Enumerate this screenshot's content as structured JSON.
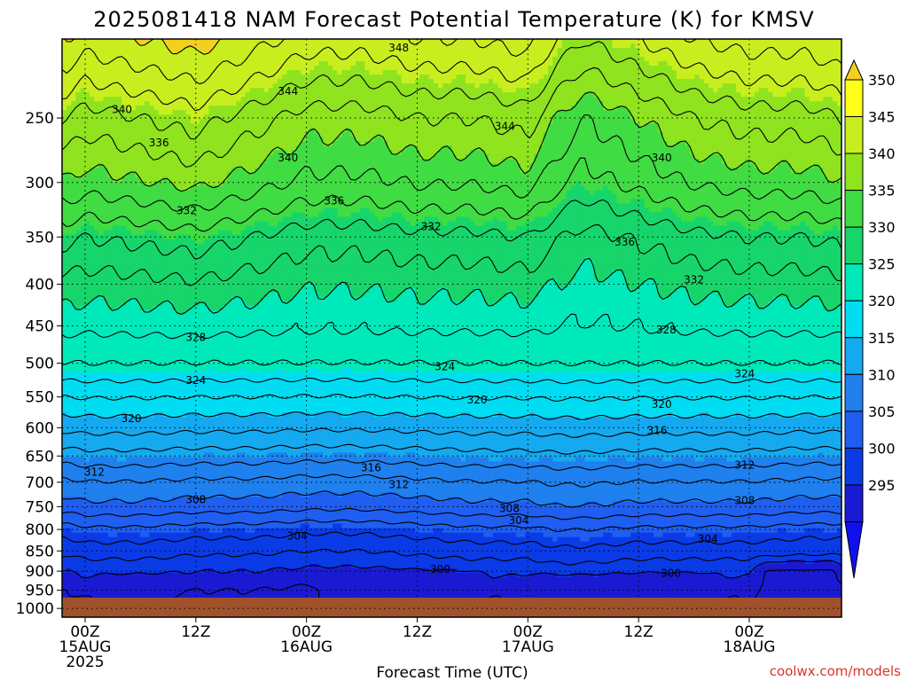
{
  "chart_data": {
    "type": "heatmap",
    "title": "2025081418 NAM Forecast Potential Temperature (K) for KMSV",
    "xlabel": "Forecast Time (UTC)",
    "ylabel": "",
    "credit": "coolwx.com/models",
    "x_range_hours_from_15AUG00Z": [
      -2.5,
      82
    ],
    "y_range_hPa": [
      1025,
      200
    ],
    "y_scale": "log-pressure",
    "y_ticks": [
      "250",
      "300",
      "350",
      "400",
      "450",
      "500",
      "550",
      "600",
      "650",
      "700",
      "750",
      "800",
      "850",
      "900",
      "950",
      "1000"
    ],
    "x_ticks": [
      {
        "hour": 0,
        "line1": "00Z",
        "line2": "15AUG",
        "line3": "2025"
      },
      {
        "hour": 12,
        "line1": "12Z",
        "line2": "",
        "line3": ""
      },
      {
        "hour": 24,
        "line1": "00Z",
        "line2": "16AUG",
        "line3": ""
      },
      {
        "hour": 36,
        "line1": "12Z",
        "line2": "",
        "line3": ""
      },
      {
        "hour": 48,
        "line1": "00Z",
        "line2": "17AUG",
        "line3": ""
      },
      {
        "hour": 60,
        "line1": "12Z",
        "line2": "",
        "line3": ""
      },
      {
        "hour": 72,
        "line1": "00Z",
        "line2": "18AUG",
        "line3": ""
      }
    ],
    "colorbar": {
      "labels": [
        "295",
        "300",
        "305",
        "310",
        "315",
        "320",
        "325",
        "330",
        "335",
        "340",
        "345",
        "350"
      ],
      "levels": [
        295,
        300,
        305,
        310,
        315,
        320,
        325,
        330,
        335,
        340,
        345,
        350
      ],
      "colors": [
        "#1a1ad2",
        "#0a3be6",
        "#1f5ef0",
        "#1f80ee",
        "#15a9f0",
        "#00ddf2",
        "#00e9bb",
        "#17d56a",
        "#40dc43",
        "#8fe31f",
        "#c9ee1f",
        "#ffff1a"
      ],
      "under_color": "#1010ee",
      "over_color": "#f2d01d"
    },
    "ground_color": "#a0522d",
    "surface_hPa": 970,
    "grid": true,
    "profile_pressures": [
      200,
      250,
      300,
      350,
      400,
      450,
      500,
      550,
      600,
      650,
      700,
      750,
      800,
      850,
      900,
      950,
      1000
    ],
    "base_profile_K": [
      349,
      343,
      339,
      334,
      331,
      328.5,
      326,
      322,
      318.5,
      315,
      311.5,
      309,
      305,
      302.5,
      300,
      298,
      297
    ],
    "series_times_hours": [
      -2,
      0,
      6,
      12,
      18,
      24,
      30,
      36,
      42,
      48,
      51,
      54,
      60,
      66,
      72,
      78,
      82
    ],
    "anomaly_upper_K": [
      1,
      0,
      1,
      2,
      0,
      -2,
      -2,
      -1,
      -1,
      0,
      -3,
      -5,
      -3,
      -1,
      0,
      0,
      1
    ],
    "anomaly_lower_K": [
      0,
      0.5,
      0.5,
      0,
      0,
      -0.5,
      -0.5,
      0,
      0.5,
      0.5,
      1,
      1,
      0.5,
      0.5,
      0.5,
      0,
      0
    ],
    "nocturnal_cool_pools": [
      {
        "start_hour": 2,
        "end_hour": 9,
        "top_hPa": 900,
        "min_K": 298.5
      },
      {
        "start_hour": 24,
        "end_hour": 43,
        "top_hPa": 890,
        "min_K": 298
      },
      {
        "start_hour": 48,
        "end_hour": 68,
        "top_hPa": 895,
        "min_K": 298.5
      },
      {
        "start_hour": 73,
        "end_hour": 82,
        "top_hPa": 860,
        "min_K": 297.5
      }
    ],
    "contour_interval_K": 2,
    "contour_labels": [
      {
        "value": "348",
        "hour": 34,
        "hPa": 205
      },
      {
        "value": "344",
        "hour": 22,
        "hPa": 232
      },
      {
        "value": "344",
        "hour": 45.5,
        "hPa": 256
      },
      {
        "value": "340",
        "hour": 4,
        "hPa": 244
      },
      {
        "value": "340",
        "hour": 22,
        "hPa": 280
      },
      {
        "value": "340",
        "hour": 62.5,
        "hPa": 280
      },
      {
        "value": "336",
        "hour": 8,
        "hPa": 268
      },
      {
        "value": "336",
        "hour": 27,
        "hPa": 316
      },
      {
        "value": "336",
        "hour": 58.5,
        "hPa": 355
      },
      {
        "value": "332",
        "hour": 11,
        "hPa": 325
      },
      {
        "value": "332",
        "hour": 37.5,
        "hPa": 340
      },
      {
        "value": "332",
        "hour": 66,
        "hPa": 395
      },
      {
        "value": "328",
        "hour": 12,
        "hPa": 465
      },
      {
        "value": "328",
        "hour": 63,
        "hPa": 455
      },
      {
        "value": "324",
        "hour": 12,
        "hPa": 525
      },
      {
        "value": "324",
        "hour": 39,
        "hPa": 505
      },
      {
        "value": "324",
        "hour": 71.5,
        "hPa": 515
      },
      {
        "value": "320",
        "hour": 5,
        "hPa": 585
      },
      {
        "value": "320",
        "hour": 42.5,
        "hPa": 555
      },
      {
        "value": "320",
        "hour": 62.5,
        "hPa": 562
      },
      {
        "value": "316",
        "hour": 31,
        "hPa": 672
      },
      {
        "value": "316",
        "hour": 62,
        "hPa": 605
      },
      {
        "value": "312",
        "hour": 1,
        "hPa": 680
      },
      {
        "value": "312",
        "hour": 34,
        "hPa": 705
      },
      {
        "value": "312",
        "hour": 71.5,
        "hPa": 667
      },
      {
        "value": "308",
        "hour": 12,
        "hPa": 735
      },
      {
        "value": "308",
        "hour": 46,
        "hPa": 754
      },
      {
        "value": "308",
        "hour": 71.5,
        "hPa": 737
      },
      {
        "value": "304",
        "hour": 23,
        "hPa": 815
      },
      {
        "value": "304",
        "hour": 47,
        "hPa": 780
      },
      {
        "value": "304",
        "hour": 67.5,
        "hPa": 822
      },
      {
        "value": "300",
        "hour": 38.5,
        "hPa": 895
      },
      {
        "value": "300",
        "hour": 63.5,
        "hPa": 905
      }
    ]
  }
}
